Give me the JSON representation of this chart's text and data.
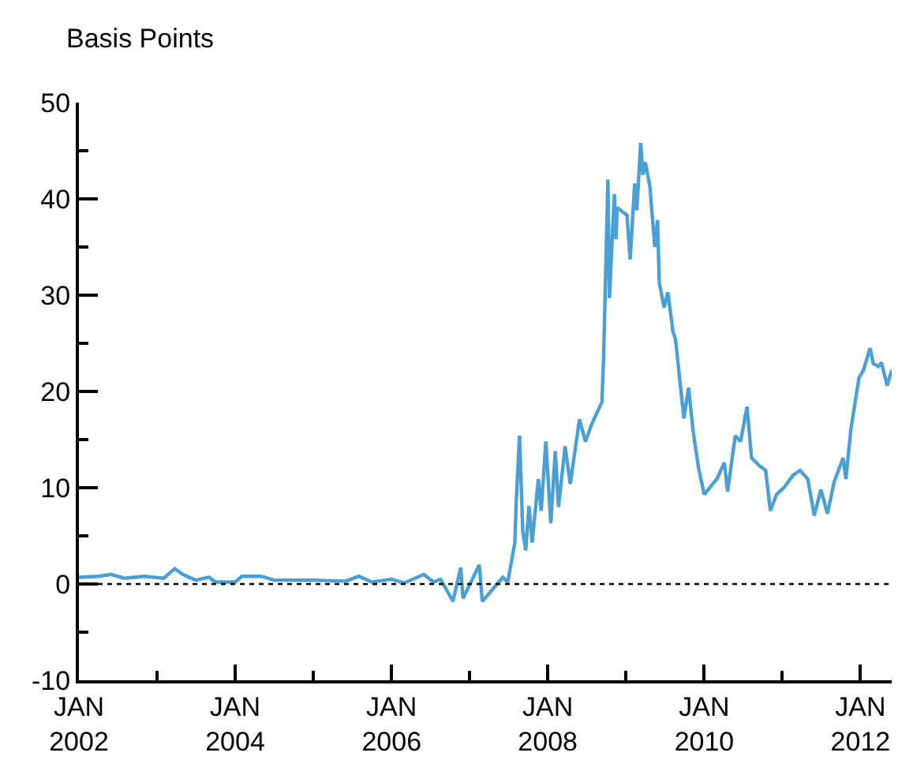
{
  "chart_data": {
    "type": "line",
    "ylabel": "Basis Points",
    "x": [
      "2002-01-01",
      "2002-04-01",
      "2002-06-01",
      "2002-08-01",
      "2002-11-01",
      "2003-02-01",
      "2003-03-25",
      "2003-05-01",
      "2003-07-01",
      "2003-09-01",
      "2003-10-01",
      "2004-01-01",
      "2004-02-01",
      "2004-05-01",
      "2004-07-01",
      "2005-01-01",
      "2005-06-01",
      "2005-08-01",
      "2005-10-01",
      "2006-01-01",
      "2006-03-01",
      "2006-06-01",
      "2006-07-15",
      "2006-08-18",
      "2006-10-15",
      "2006-11-20",
      "2006-12-01",
      "2007-02-15",
      "2007-03-01",
      "2007-06-05",
      "2007-06-28",
      "2007-07-31",
      "2007-08-07",
      "2007-08-22",
      "2007-09-06",
      "2007-09-20",
      "2007-10-05",
      "2007-10-20",
      "2007-11-18",
      "2007-12-01",
      "2007-12-23",
      "2008-01-15",
      "2008-02-05",
      "2008-02-20",
      "2008-03-22",
      "2008-04-15",
      "2008-05-10",
      "2008-05-28",
      "2008-06-25",
      "2008-07-26",
      "2008-09-10",
      "2008-09-18",
      "2008-10-08",
      "2008-10-15",
      "2008-11-07",
      "2008-11-15",
      "2008-11-20",
      "2009-01-05",
      "2009-01-20",
      "2009-02-10",
      "2009-02-20",
      "2009-03-10",
      "2009-03-20",
      "2009-04-01",
      "2009-04-22",
      "2009-05-15",
      "2009-05-28",
      "2009-06-05",
      "2009-06-28",
      "2009-07-15",
      "2009-08-08",
      "2009-08-20",
      "2009-09-08",
      "2009-09-28",
      "2009-10-20",
      "2009-11-10",
      "2009-12-05",
      "2010-01-01",
      "2010-02-10",
      "2010-03-01",
      "2010-04-05",
      "2010-04-20",
      "2010-05-26",
      "2010-06-20",
      "2010-07-20",
      "2010-08-10",
      "2010-09-15",
      "2010-10-15",
      "2010-11-06",
      "2010-12-05",
      "2011-01-12",
      "2011-02-20",
      "2011-03-25",
      "2011-04-30",
      "2011-05-30",
      "2011-06-30",
      "2011-07-31",
      "2011-08-31",
      "2011-10-12",
      "2011-10-25",
      "2011-11-18",
      "2011-12-25",
      "2012-01-15",
      "2012-02-15",
      "2012-03-01",
      "2012-03-25",
      "2012-04-08",
      "2012-05-05",
      "2012-05-26"
    ],
    "series": [
      {
        "color": "#4a9fd4",
        "values": [
          0.7,
          0.8,
          1.0,
          0.6,
          0.8,
          0.6,
          1.6,
          1.0,
          0.4,
          0.7,
          0.2,
          0.2,
          0.8,
          0.8,
          0.4,
          0.4,
          0.3,
          0.8,
          0.2,
          0.5,
          0.1,
          1.0,
          0.2,
          0.5,
          -1.8,
          1.7,
          -1.5,
          2.0,
          -1.8,
          0.7,
          0.2,
          4.3,
          8.8,
          15.4,
          5.5,
          3.5,
          8.1,
          4.3,
          10.9,
          7.6,
          14.8,
          6.3,
          13.8,
          8.0,
          14.3,
          10.4,
          14.3,
          17.1,
          14.8,
          16.7,
          18.9,
          23.7,
          42.0,
          29.7,
          40.5,
          35.8,
          39.1,
          38.3,
          33.7,
          41.6,
          38.8,
          45.8,
          42.5,
          43.8,
          41.3,
          35.0,
          37.8,
          31.3,
          28.7,
          30.3,
          26.2,
          25.4,
          21.4,
          17.2,
          20.4,
          15.9,
          12.1,
          9.3,
          10.4,
          10.9,
          12.6,
          9.6,
          15.4,
          14.8,
          18.4,
          13.1,
          12.3,
          11.8,
          7.6,
          9.3,
          10.1,
          11.3,
          11.8,
          10.9,
          7.1,
          9.8,
          7.3,
          10.6,
          13.1,
          10.9,
          16.2,
          21.4,
          22.2,
          24.5,
          22.9,
          22.6,
          23.0,
          20.6,
          22.2
        ]
      }
    ],
    "xlim": [
      "2002-01-01",
      "2012-05-26"
    ],
    "xticks": [
      {
        "value": "2002-01-01",
        "label": "JAN\n2002"
      },
      {
        "value": "2003-01-01",
        "label": null
      },
      {
        "value": "2004-01-01",
        "label": "JAN\n2004"
      },
      {
        "value": "2005-01-01",
        "label": null
      },
      {
        "value": "2006-01-01",
        "label": "JAN\n2006"
      },
      {
        "value": "2007-01-01",
        "label": null
      },
      {
        "value": "2008-01-01",
        "label": "JAN\n2008"
      },
      {
        "value": "2009-01-01",
        "label": null
      },
      {
        "value": "2010-01-01",
        "label": "JAN\n2010"
      },
      {
        "value": "2011-01-01",
        "label": null
      },
      {
        "value": "2012-01-01",
        "label": "JAN\n2012"
      }
    ],
    "ylim": [
      -10,
      50
    ],
    "yticks": [
      -10,
      {
        "value": -5,
        "label": null
      },
      0,
      {
        "value": 5,
        "label": null
      },
      10,
      {
        "value": 15,
        "label": null
      },
      20,
      {
        "value": 25,
        "label": null
      },
      30,
      {
        "value": 35,
        "label": null
      },
      40,
      {
        "value": 45,
        "label": null
      },
      50
    ],
    "ref_lines": [
      {
        "axis": "y",
        "value": 0,
        "color": "#000000",
        "line_style": "dotted"
      }
    ],
    "legend": false,
    "marker": "none",
    "line_style": "solid"
  }
}
